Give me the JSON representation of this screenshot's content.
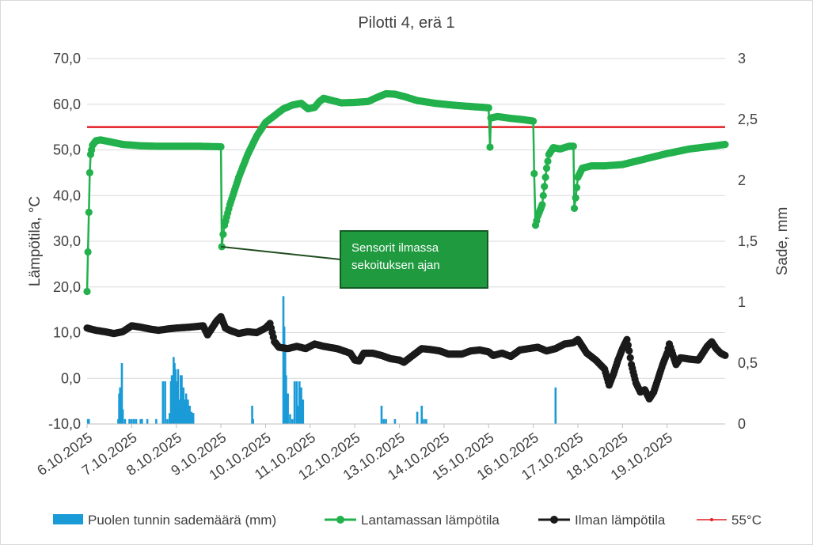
{
  "chart_data": {
    "type": "line",
    "title": "Pilotti 4, erä 1",
    "ylabel": "Lämpötila, °C",
    "y2label": "Sade, mm",
    "ylim": [
      -10,
      70
    ],
    "y2lim": [
      0,
      3
    ],
    "y_ticks": [
      "70,0",
      "60,0",
      "50,0",
      "40,0",
      "30,0",
      "20,0",
      "10,0",
      "0,0",
      "-10,0"
    ],
    "y2_ticks": [
      "3",
      "2,5",
      "2",
      "1,5",
      "1",
      "0,5",
      "0"
    ],
    "x_ticks": [
      "6.10.2025",
      "7.10.2025",
      "8.10.2025",
      "9.10.2025",
      "10.10.2025",
      "11.10.2025",
      "12.10.2025",
      "13.10.2025",
      "14.10.2025",
      "15.10.2025",
      "16.10.2025",
      "17.10.2025",
      "18.10.2025",
      "19.10.2025"
    ],
    "x_unit": "day",
    "xlim": [
      0,
      14.3
    ],
    "grid": "horizontal",
    "legend_position": "bottom",
    "annotation": {
      "text_lines": [
        "Sensorit ilmassa",
        "sekoituksen ajan"
      ],
      "points_to": {
        "x": 3.0,
        "y": 28.8
      }
    },
    "series": [
      {
        "name": "Lantamassan lämpötila",
        "axis": "left",
        "color": "#22b14c",
        "marker": "circle",
        "points": [
          [
            0,
            19.0
          ],
          [
            0.06,
            45
          ],
          [
            0.08,
            49
          ],
          [
            0.12,
            51
          ],
          [
            0.2,
            52
          ],
          [
            0.3,
            52.2
          ],
          [
            0.5,
            51.8
          ],
          [
            0.8,
            51.2
          ],
          [
            1.2,
            50.9
          ],
          [
            1.6,
            50.8
          ],
          [
            2.0,
            50.8
          ],
          [
            2.5,
            50.8
          ],
          [
            2.95,
            50.7
          ],
          [
            3.0,
            50.7
          ],
          [
            3.02,
            28.8
          ],
          [
            3.05,
            31.5
          ],
          [
            3.08,
            33.5
          ],
          [
            3.2,
            38
          ],
          [
            3.4,
            44
          ],
          [
            3.6,
            49
          ],
          [
            3.8,
            53
          ],
          [
            4.0,
            56
          ],
          [
            4.2,
            57.5
          ],
          [
            4.4,
            59
          ],
          [
            4.6,
            59.8
          ],
          [
            4.8,
            60.2
          ],
          [
            4.95,
            59
          ],
          [
            5.1,
            59.3
          ],
          [
            5.2,
            60.5
          ],
          [
            5.3,
            61.3
          ],
          [
            5.5,
            60.8
          ],
          [
            5.7,
            60.3
          ],
          [
            6.0,
            60.4
          ],
          [
            6.3,
            60.6
          ],
          [
            6.5,
            61.5
          ],
          [
            6.7,
            62.3
          ],
          [
            6.9,
            62.2
          ],
          [
            7.1,
            61.7
          ],
          [
            7.4,
            60.8
          ],
          [
            7.8,
            60.2
          ],
          [
            8.2,
            59.8
          ],
          [
            8.6,
            59.5
          ],
          [
            8.9,
            59.3
          ],
          [
            9.0,
            59.2
          ],
          [
            9.03,
            50.6
          ],
          [
            9.05,
            57.0
          ],
          [
            9.2,
            57.3
          ],
          [
            9.5,
            56.9
          ],
          [
            9.8,
            56.6
          ],
          [
            10.0,
            56.3
          ],
          [
            10.02,
            44.8
          ],
          [
            10.05,
            33.5
          ],
          [
            10.1,
            35.5
          ],
          [
            10.2,
            38
          ],
          [
            10.25,
            42
          ],
          [
            10.3,
            46
          ],
          [
            10.35,
            49
          ],
          [
            10.45,
            50.5
          ],
          [
            10.6,
            50.2
          ],
          [
            10.8,
            50.8
          ],
          [
            10.9,
            50.8
          ],
          [
            10.92,
            37.2
          ],
          [
            10.95,
            39.5
          ],
          [
            11.0,
            44
          ],
          [
            11.1,
            46
          ],
          [
            11.3,
            46.5
          ],
          [
            11.6,
            46.5
          ],
          [
            12.0,
            46.8
          ],
          [
            12.5,
            48
          ],
          [
            13.0,
            49.2
          ],
          [
            13.5,
            50.2
          ],
          [
            14.0,
            50.8
          ],
          [
            14.3,
            51.2
          ]
        ]
      },
      {
        "name": "Ilman lämpötila",
        "axis": "left",
        "color": "#1a1a1a",
        "marker": "circle",
        "points": [
          [
            0,
            11.0
          ],
          [
            0.2,
            10.5
          ],
          [
            0.4,
            10.2
          ],
          [
            0.6,
            9.8
          ],
          [
            0.8,
            10.2
          ],
          [
            1.0,
            11.5
          ],
          [
            1.2,
            11.2
          ],
          [
            1.4,
            10.8
          ],
          [
            1.6,
            10.5
          ],
          [
            1.8,
            10.8
          ],
          [
            2.0,
            11.0
          ],
          [
            2.3,
            11.2
          ],
          [
            2.6,
            11.5
          ],
          [
            2.7,
            9.5
          ],
          [
            2.8,
            11
          ],
          [
            2.9,
            12.5
          ],
          [
            3.0,
            13.5
          ],
          [
            3.1,
            11
          ],
          [
            3.2,
            10.5
          ],
          [
            3.4,
            9.8
          ],
          [
            3.6,
            10.2
          ],
          [
            3.8,
            10
          ],
          [
            4.0,
            11.0
          ],
          [
            4.1,
            12
          ],
          [
            4.15,
            10
          ],
          [
            4.2,
            8
          ],
          [
            4.3,
            6.8
          ],
          [
            4.5,
            6.5
          ],
          [
            4.7,
            7.0
          ],
          [
            4.9,
            6.5
          ],
          [
            5.1,
            7.5
          ],
          [
            5.3,
            7.0
          ],
          [
            5.6,
            6.5
          ],
          [
            5.9,
            5.5
          ],
          [
            6.0,
            4.0
          ],
          [
            6.1,
            3.8
          ],
          [
            6.2,
            5.5
          ],
          [
            6.4,
            5.5
          ],
          [
            6.6,
            5.0
          ],
          [
            6.8,
            4.3
          ],
          [
            7.0,
            4.0
          ],
          [
            7.1,
            3.5
          ],
          [
            7.3,
            5.0
          ],
          [
            7.5,
            6.5
          ],
          [
            7.7,
            6.3
          ],
          [
            7.9,
            6.0
          ],
          [
            8.1,
            5.3
          ],
          [
            8.4,
            5.3
          ],
          [
            8.6,
            6.0
          ],
          [
            8.8,
            6.2
          ],
          [
            9.0,
            5.8
          ],
          [
            9.1,
            5.0
          ],
          [
            9.3,
            5.5
          ],
          [
            9.5,
            4.8
          ],
          [
            9.7,
            6.2
          ],
          [
            9.9,
            6.5
          ],
          [
            10.1,
            6.8
          ],
          [
            10.3,
            6.0
          ],
          [
            10.5,
            6.5
          ],
          [
            10.7,
            7.5
          ],
          [
            10.9,
            7.8
          ],
          [
            11.0,
            8.5
          ],
          [
            11.1,
            7
          ],
          [
            11.2,
            5.5
          ],
          [
            11.4,
            4
          ],
          [
            11.6,
            2.0
          ],
          [
            11.7,
            -1.5
          ],
          [
            11.8,
            1
          ],
          [
            11.9,
            4
          ],
          [
            12.0,
            6.5
          ],
          [
            12.1,
            8.5
          ],
          [
            12.15,
            6
          ],
          [
            12.2,
            3
          ],
          [
            12.3,
            -1
          ],
          [
            12.4,
            -3
          ],
          [
            12.5,
            -2.5
          ],
          [
            12.6,
            -4.5
          ],
          [
            12.7,
            -3
          ],
          [
            12.8,
            0
          ],
          [
            12.9,
            3
          ],
          [
            13.0,
            5.5
          ],
          [
            13.05,
            7.5
          ],
          [
            13.1,
            6
          ],
          [
            13.2,
            3
          ],
          [
            13.3,
            4.5
          ],
          [
            13.5,
            4.2
          ],
          [
            13.7,
            4.0
          ],
          [
            13.8,
            5.5
          ],
          [
            13.9,
            7.0
          ],
          [
            14.0,
            8
          ],
          [
            14.1,
            6.5
          ],
          [
            14.2,
            5.5
          ],
          [
            14.3,
            5.0
          ]
        ]
      },
      {
        "name": "55°C",
        "axis": "left",
        "color": "#e21e24",
        "marker": "none",
        "points": [
          [
            0,
            55
          ],
          [
            14.3,
            55
          ]
        ]
      },
      {
        "name": "Puolen tunnin sademäärä (mm)",
        "axis": "right",
        "type": "bar",
        "color": "#1a9bd7",
        "points": [
          [
            0.02,
            0.04
          ],
          [
            0.04,
            0.04
          ],
          [
            0.7,
            0.04
          ],
          [
            0.72,
            0.25
          ],
          [
            0.74,
            0.3
          ],
          [
            0.76,
            0.25
          ],
          [
            0.78,
            0.5
          ],
          [
            0.8,
            0.12
          ],
          [
            0.85,
            0.04
          ],
          [
            0.95,
            0.04
          ],
          [
            1.0,
            0.04
          ],
          [
            1.05,
            0.04
          ],
          [
            1.1,
            0.04
          ],
          [
            1.2,
            0.04
          ],
          [
            1.23,
            0.04
          ],
          [
            1.35,
            0.04
          ],
          [
            1.55,
            0.04
          ],
          [
            1.7,
            0.35
          ],
          [
            1.75,
            0.35
          ],
          [
            1.8,
            0.04
          ],
          [
            1.85,
            0.09
          ],
          [
            1.88,
            0.35
          ],
          [
            1.9,
            0.4
          ],
          [
            1.92,
            0.35
          ],
          [
            1.94,
            0.55
          ],
          [
            1.96,
            0.5
          ],
          [
            1.98,
            0.45
          ],
          [
            2.0,
            0.35
          ],
          [
            2.02,
            0.2
          ],
          [
            2.04,
            0.45
          ],
          [
            2.06,
            0.2
          ],
          [
            2.1,
            0.4
          ],
          [
            2.12,
            0.4
          ],
          [
            2.14,
            0.25
          ],
          [
            2.16,
            0.3
          ],
          [
            2.18,
            0.2
          ],
          [
            2.22,
            0.25
          ],
          [
            2.26,
            0.2
          ],
          [
            2.3,
            0.15
          ],
          [
            2.34,
            0.1
          ],
          [
            2.38,
            0.09
          ],
          [
            3.7,
            0.15
          ],
          [
            3.72,
            0.04
          ],
          [
            4.4,
            1.05
          ],
          [
            4.42,
            0.8
          ],
          [
            4.44,
            0.6
          ],
          [
            4.46,
            0.4
          ],
          [
            4.5,
            0.25
          ],
          [
            4.55,
            0.08
          ],
          [
            4.6,
            0.04
          ],
          [
            4.65,
            0.35
          ],
          [
            4.7,
            0.35
          ],
          [
            4.72,
            0.15
          ],
          [
            4.76,
            0.35
          ],
          [
            4.8,
            0.3
          ],
          [
            4.84,
            0.2
          ],
          [
            6.6,
            0.15
          ],
          [
            6.65,
            0.04
          ],
          [
            6.7,
            0.04
          ],
          [
            6.9,
            0.04
          ],
          [
            7.4,
            0.1
          ],
          [
            7.5,
            0.15
          ],
          [
            7.55,
            0.04
          ],
          [
            7.6,
            0.04
          ],
          [
            10.5,
            0.3
          ]
        ]
      }
    ]
  },
  "legend": {
    "rain": "Puolen tunnin sademäärä (mm)",
    "compost": "Lantamassan lämpötila",
    "air": "Ilman lämpötila",
    "limit": "55°C"
  }
}
